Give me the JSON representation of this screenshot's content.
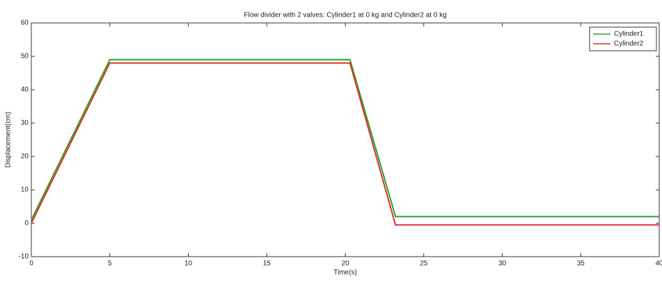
{
  "chart_data": {
    "type": "line",
    "title": "Flow divider with 2 valves: Cylinder1 at 0 kg and Cylinder2 at 0 kg",
    "x_label": "Time(s)",
    "y_label": "Displacement(cm)",
    "x": [
      0,
      5,
      20.3,
      23.2,
      40
    ],
    "series": [
      {
        "name": "Cylinder1",
        "color": "#2ca02c",
        "values": [
          1,
          49,
          49,
          2,
          2
        ]
      },
      {
        "name": "Cylinder2",
        "color": "#e0302a",
        "values": [
          0,
          48,
          48,
          -0.5,
          -0.5
        ]
      }
    ],
    "xlim": [
      0,
      40
    ],
    "xticks": [
      0,
      5,
      10,
      15,
      20,
      25,
      30,
      35,
      40
    ],
    "ylim": [
      -10,
      60
    ],
    "yticks": [
      -10,
      0,
      10,
      20,
      30,
      40,
      50,
      60
    ],
    "grid": false,
    "legend": "top-right"
  }
}
